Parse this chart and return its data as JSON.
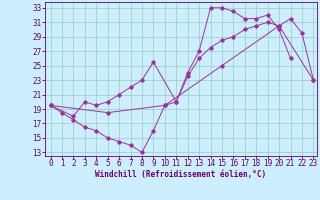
{
  "xlabel": "Windchill (Refroidissement éolien,°C)",
  "bg_color": "#cceeff",
  "line_color": "#993399",
  "grid_color": "#99ccbb",
  "xlim_min": -0.5,
  "xlim_max": 23.3,
  "ylim_min": 12.5,
  "ylim_max": 33.8,
  "xticks": [
    0,
    1,
    2,
    3,
    4,
    5,
    6,
    7,
    8,
    9,
    10,
    11,
    12,
    13,
    14,
    15,
    16,
    17,
    18,
    19,
    20,
    21,
    22,
    23
  ],
  "yticks": [
    13,
    15,
    17,
    19,
    21,
    23,
    25,
    27,
    29,
    31,
    33
  ],
  "series1_x": [
    0,
    1,
    2,
    3,
    4,
    5,
    6,
    7,
    8,
    9,
    10,
    11,
    12,
    13,
    14,
    15,
    16,
    17,
    18,
    19,
    20,
    21
  ],
  "series1_y": [
    19.5,
    18.5,
    17.5,
    16.5,
    16.0,
    15.0,
    14.5,
    14.0,
    13.0,
    16.0,
    19.5,
    20.0,
    24.0,
    27.0,
    33.0,
    33.0,
    32.5,
    31.5,
    31.5,
    32.0,
    30.0,
    26.0
  ],
  "series2_x": [
    0,
    2,
    3,
    4,
    5,
    6,
    7,
    8,
    9,
    11,
    12,
    13,
    14,
    15,
    16,
    17,
    18,
    19,
    20,
    21,
    22,
    23
  ],
  "series2_y": [
    19.5,
    18.0,
    20.0,
    19.5,
    20.0,
    21.0,
    22.0,
    23.0,
    25.5,
    20.0,
    23.5,
    26.0,
    27.5,
    28.5,
    29.0,
    30.0,
    30.5,
    31.0,
    30.5,
    31.5,
    29.5,
    23.0
  ],
  "series3_x": [
    0,
    5,
    10,
    15,
    20,
    23
  ],
  "series3_y": [
    19.5,
    18.5,
    19.5,
    25.0,
    30.5,
    23.0
  ],
  "tick_fontsize": 5.5,
  "xlabel_fontsize": 5.5
}
